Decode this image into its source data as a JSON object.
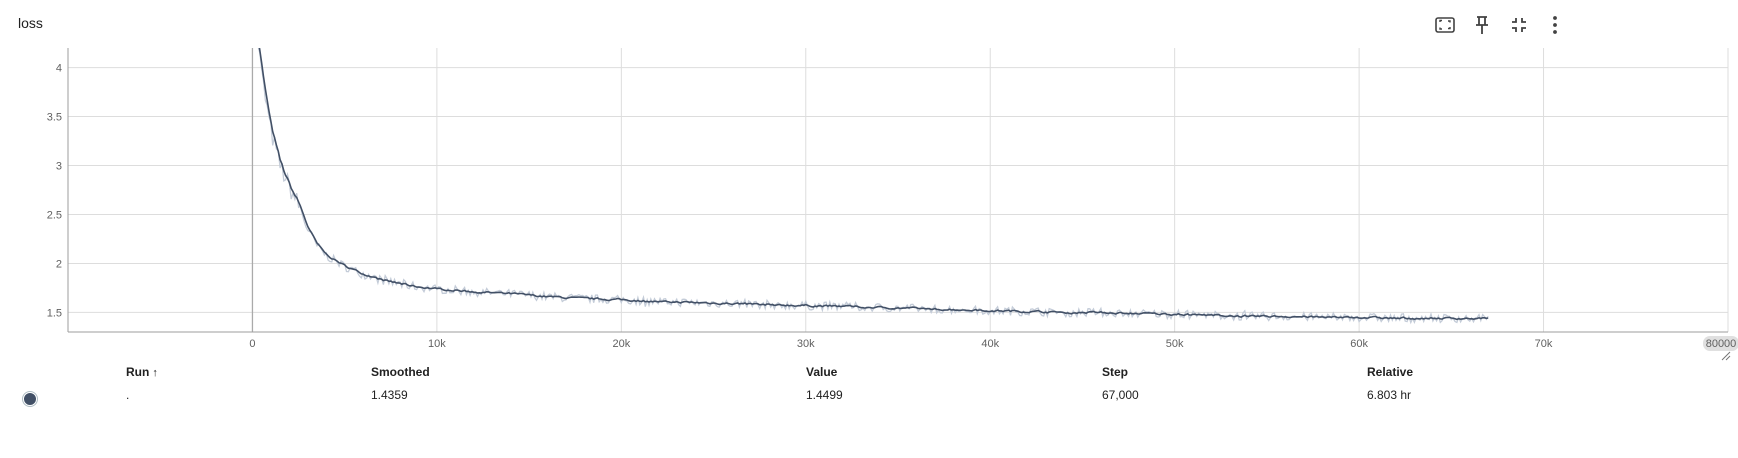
{
  "card": {
    "title": "loss"
  },
  "toolbar": {
    "icons": [
      "fit-domain-icon",
      "pin-icon",
      "collapse-icon",
      "more-vert-icon"
    ]
  },
  "colors": {
    "raw_line": "#c4ccd8",
    "smoothed_line": "#425066",
    "grid": "#dddddd",
    "zero_axis": "#aaaaaa"
  },
  "chart_data": {
    "type": "line",
    "title": "loss",
    "xlabel": "",
    "ylabel": "",
    "xlim": [
      -10000,
      80000
    ],
    "ylim": [
      1.3,
      4.2
    ],
    "x_ticks": [
      0,
      10000,
      20000,
      30000,
      40000,
      50000,
      60000,
      70000
    ],
    "x_tick_labels": [
      "0",
      "10k",
      "20k",
      "30k",
      "40k",
      "50k",
      "60k",
      "70k"
    ],
    "x_edge_label": "80000",
    "y_ticks": [
      1.5,
      2,
      2.5,
      3,
      3.5,
      4
    ],
    "y_tick_labels": [
      "1.5",
      "2",
      "2.5",
      "3",
      "3.5",
      "4"
    ],
    "grid": true,
    "series": [
      {
        "name": ".",
        "role": "smoothed",
        "x": [
          0,
          300,
          600,
          1000,
          1500,
          2000,
          2500,
          3000,
          3500,
          4000,
          5000,
          6000,
          7000,
          8000,
          9000,
          10000,
          12000,
          14000,
          16000,
          18000,
          20000,
          22000,
          24000,
          26000,
          28000,
          30000,
          32000,
          34000,
          36000,
          38000,
          40000,
          42000,
          44000,
          46000,
          48000,
          50000,
          52000,
          54000,
          56000,
          58000,
          60000,
          62000,
          64000,
          66000,
          67000
        ],
        "y": [
          4.6,
          4.25,
          3.8,
          3.35,
          3.0,
          2.78,
          2.6,
          2.35,
          2.18,
          2.08,
          1.97,
          1.89,
          1.83,
          1.79,
          1.76,
          1.74,
          1.71,
          1.69,
          1.66,
          1.64,
          1.63,
          1.61,
          1.6,
          1.59,
          1.58,
          1.57,
          1.56,
          1.55,
          1.54,
          1.53,
          1.52,
          1.51,
          1.5,
          1.5,
          1.49,
          1.48,
          1.47,
          1.46,
          1.46,
          1.45,
          1.45,
          1.44,
          1.44,
          1.44,
          1.4359
        ]
      }
    ],
    "noise_amplitude": 0.045,
    "table": {
      "columns": [
        "Run",
        "Smoothed",
        "Value",
        "Step",
        "Relative"
      ],
      "rows": [
        {
          "run": ".",
          "smoothed": "1.4359",
          "value": "1.4499",
          "step": "67,000",
          "relative": "6.803 hr"
        }
      ]
    }
  },
  "table_ui": {
    "sort_indicator": "↑"
  }
}
